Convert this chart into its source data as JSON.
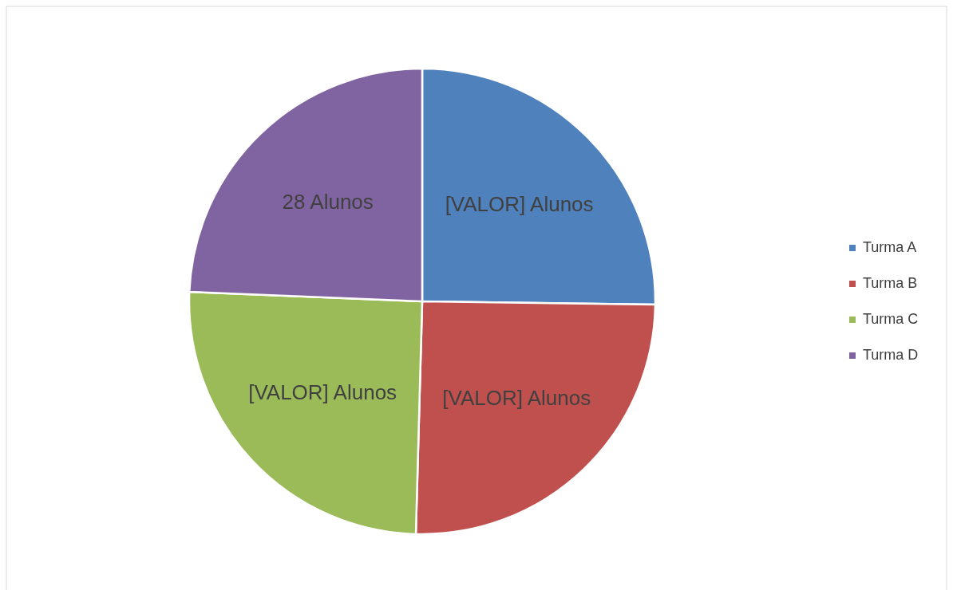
{
  "chart_data": {
    "type": "pie",
    "categories": [
      "Turma A",
      "Turma B",
      "Turma C",
      "Turma D"
    ],
    "values": [
      29,
      29,
      29,
      28
    ],
    "colors": [
      "#4f81bd",
      "#c0504d",
      "#9bbb59",
      "#8064a2"
    ],
    "value_labels": [
      "[VALOR] Alunos",
      "[VALOR] Alunos",
      "[VALOR] Alunos",
      "28 Alunos"
    ],
    "legend": "right"
  }
}
